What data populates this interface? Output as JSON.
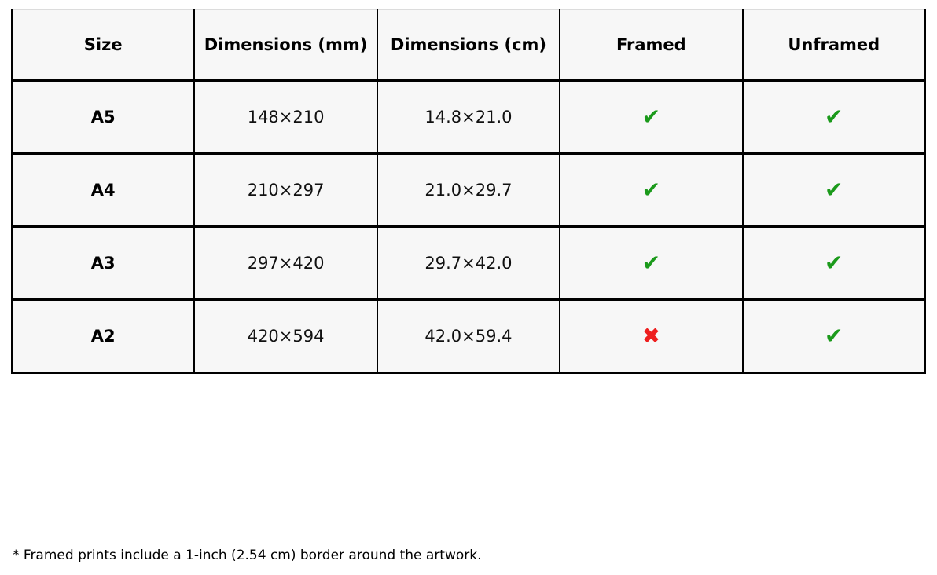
{
  "table": {
    "headers": [
      "Size",
      "Dimensions (mm)",
      "Dimensions (cm)",
      "Framed",
      "Unframed"
    ],
    "rows": [
      {
        "size": "A5",
        "dimensions_mm": "148×210",
        "dimensions_cm": "14.8×21.0",
        "framed": "check",
        "unframed": "check"
      },
      {
        "size": "A4",
        "dimensions_mm": "210×297",
        "dimensions_cm": "21.0×29.7",
        "framed": "check",
        "unframed": "check"
      },
      {
        "size": "A3",
        "dimensions_mm": "297×420",
        "dimensions_cm": "29.7×42.0",
        "framed": "check",
        "unframed": "check"
      },
      {
        "size": "A2",
        "dimensions_mm": "420×594",
        "dimensions_cm": "42.0×59.4",
        "framed": "cross",
        "unframed": "check"
      }
    ]
  },
  "icons": {
    "check": "✔",
    "cross": "✖"
  },
  "colors": {
    "check_green": "#1b9a1b",
    "cross_red": "#ee1f1f",
    "cell_background": "#f7f7f7",
    "border_black": "#000000",
    "top_border_gray": "#dcdcdc"
  },
  "footnote": "* Framed prints include a 1-inch (2.54 cm) border around the artwork."
}
